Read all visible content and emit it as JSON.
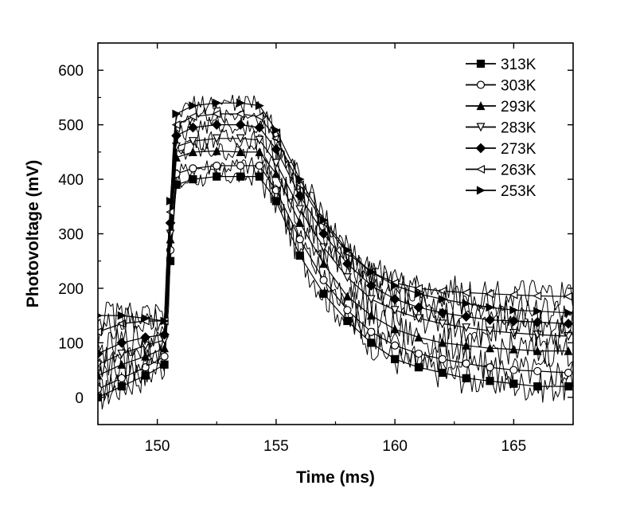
{
  "chart_data": {
    "type": "scatter",
    "title": "",
    "xlabel": "Time (ms)",
    "ylabel": "Photovoltage (mV)",
    "xlim": [
      147.5,
      167.5
    ],
    "ylim": [
      -50,
      650
    ],
    "x_ticks": [
      150,
      155,
      160,
      165
    ],
    "y_ticks": [
      0,
      100,
      200,
      300,
      400,
      500,
      600
    ],
    "grid": false,
    "legend_position": "top-right",
    "series": [
      {
        "name": "313K",
        "marker": "square-filled",
        "color": "#000000",
        "points": [
          [
            147.5,
            0
          ],
          [
            148.5,
            20
          ],
          [
            149.5,
            40
          ],
          [
            150.3,
            60
          ],
          [
            150.55,
            250
          ],
          [
            150.8,
            390
          ],
          [
            151.5,
            400
          ],
          [
            152.5,
            405
          ],
          [
            153.5,
            405
          ],
          [
            154.3,
            405
          ],
          [
            155,
            360
          ],
          [
            156,
            260
          ],
          [
            157,
            190
          ],
          [
            158,
            140
          ],
          [
            159,
            100
          ],
          [
            160,
            70
          ],
          [
            161,
            55
          ],
          [
            162,
            45
          ],
          [
            163,
            35
          ],
          [
            164,
            30
          ],
          [
            165,
            25
          ],
          [
            166,
            20
          ],
          [
            167.3,
            20
          ]
        ]
      },
      {
        "name": "303K",
        "marker": "circle-open",
        "color": "#000000",
        "points": [
          [
            147.5,
            15
          ],
          [
            148.5,
            35
          ],
          [
            149.5,
            55
          ],
          [
            150.3,
            75
          ],
          [
            150.55,
            270
          ],
          [
            150.8,
            410
          ],
          [
            151.5,
            420
          ],
          [
            152.5,
            425
          ],
          [
            153.5,
            425
          ],
          [
            154.3,
            425
          ],
          [
            155,
            380
          ],
          [
            156,
            290
          ],
          [
            157,
            215
          ],
          [
            158,
            160
          ],
          [
            159,
            120
          ],
          [
            160,
            95
          ],
          [
            161,
            80
          ],
          [
            162,
            70
          ],
          [
            163,
            62
          ],
          [
            164,
            55
          ],
          [
            165,
            50
          ],
          [
            166,
            48
          ],
          [
            167.3,
            45
          ]
        ]
      },
      {
        "name": "293K",
        "marker": "triangle-up-filled",
        "color": "#000000",
        "points": [
          [
            147.5,
            40
          ],
          [
            148.5,
            60
          ],
          [
            149.5,
            75
          ],
          [
            150.3,
            90
          ],
          [
            150.55,
            290
          ],
          [
            150.8,
            440
          ],
          [
            151.5,
            450
          ],
          [
            152.5,
            452
          ],
          [
            153.5,
            450
          ],
          [
            154.3,
            450
          ],
          [
            155,
            410
          ],
          [
            156,
            320
          ],
          [
            157,
            245
          ],
          [
            158,
            185
          ],
          [
            159,
            150
          ],
          [
            160,
            125
          ],
          [
            161,
            110
          ],
          [
            162,
            100
          ],
          [
            163,
            95
          ],
          [
            164,
            90
          ],
          [
            165,
            88
          ],
          [
            166,
            85
          ],
          [
            167.3,
            85
          ]
        ]
      },
      {
        "name": "283K",
        "marker": "triangle-down-open",
        "color": "#000000",
        "points": [
          [
            147.5,
            60
          ],
          [
            148.5,
            80
          ],
          [
            149.5,
            95
          ],
          [
            150.3,
            105
          ],
          [
            150.55,
            300
          ],
          [
            150.8,
            460
          ],
          [
            151.5,
            470
          ],
          [
            152.5,
            475
          ],
          [
            153.5,
            475
          ],
          [
            154.3,
            472
          ],
          [
            155,
            430
          ],
          [
            156,
            345
          ],
          [
            157,
            275
          ],
          [
            158,
            220
          ],
          [
            159,
            180
          ],
          [
            160,
            160
          ],
          [
            161,
            145
          ],
          [
            162,
            135
          ],
          [
            163,
            128
          ],
          [
            164,
            122
          ],
          [
            165,
            118
          ],
          [
            166,
            115
          ],
          [
            167.3,
            112
          ]
        ]
      },
      {
        "name": "273K",
        "marker": "diamond-filled",
        "color": "#000000",
        "points": [
          [
            147.5,
            80
          ],
          [
            148.5,
            100
          ],
          [
            149.5,
            110
          ],
          [
            150.3,
            115
          ],
          [
            150.55,
            320
          ],
          [
            150.8,
            480
          ],
          [
            151.5,
            495
          ],
          [
            152.5,
            500
          ],
          [
            153.5,
            500
          ],
          [
            154.3,
            495
          ],
          [
            155,
            455
          ],
          [
            156,
            370
          ],
          [
            157,
            300
          ],
          [
            158,
            245
          ],
          [
            159,
            205
          ],
          [
            160,
            180
          ],
          [
            161,
            165
          ],
          [
            162,
            155
          ],
          [
            163,
            148
          ],
          [
            164,
            142
          ],
          [
            165,
            140
          ],
          [
            166,
            138
          ],
          [
            167.3,
            135
          ]
        ]
      },
      {
        "name": "263K",
        "marker": "triangle-left-open",
        "color": "#000000",
        "points": [
          [
            147.5,
            120
          ],
          [
            148.5,
            135
          ],
          [
            149.5,
            140
          ],
          [
            150.3,
            140
          ],
          [
            150.55,
            340
          ],
          [
            150.8,
            500
          ],
          [
            151.5,
            515
          ],
          [
            152.5,
            520
          ],
          [
            153.5,
            520
          ],
          [
            154.3,
            515
          ],
          [
            155,
            475
          ],
          [
            156,
            390
          ],
          [
            157,
            320
          ],
          [
            158,
            265
          ],
          [
            159,
            230
          ],
          [
            160,
            210
          ],
          [
            161,
            200
          ],
          [
            162,
            195
          ],
          [
            163,
            192
          ],
          [
            164,
            190
          ],
          [
            165,
            188
          ],
          [
            166,
            186
          ],
          [
            167.3,
            185
          ]
        ]
      },
      {
        "name": "253K",
        "marker": "triangle-right-filled",
        "color": "#000000",
        "points": [
          [
            147.5,
            150
          ],
          [
            148.5,
            150
          ],
          [
            149.5,
            145
          ],
          [
            150.3,
            140
          ],
          [
            150.55,
            360
          ],
          [
            150.8,
            520
          ],
          [
            151.5,
            535
          ],
          [
            152.5,
            540
          ],
          [
            153.5,
            540
          ],
          [
            154.3,
            535
          ],
          [
            155,
            490
          ],
          [
            156,
            400
          ],
          [
            157,
            325
          ],
          [
            158,
            270
          ],
          [
            159,
            230
          ],
          [
            160,
            205
          ],
          [
            161,
            190
          ],
          [
            162,
            180
          ],
          [
            163,
            172
          ],
          [
            164,
            165
          ],
          [
            165,
            160
          ],
          [
            166,
            158
          ],
          [
            167.3,
            155
          ]
        ]
      }
    ]
  }
}
